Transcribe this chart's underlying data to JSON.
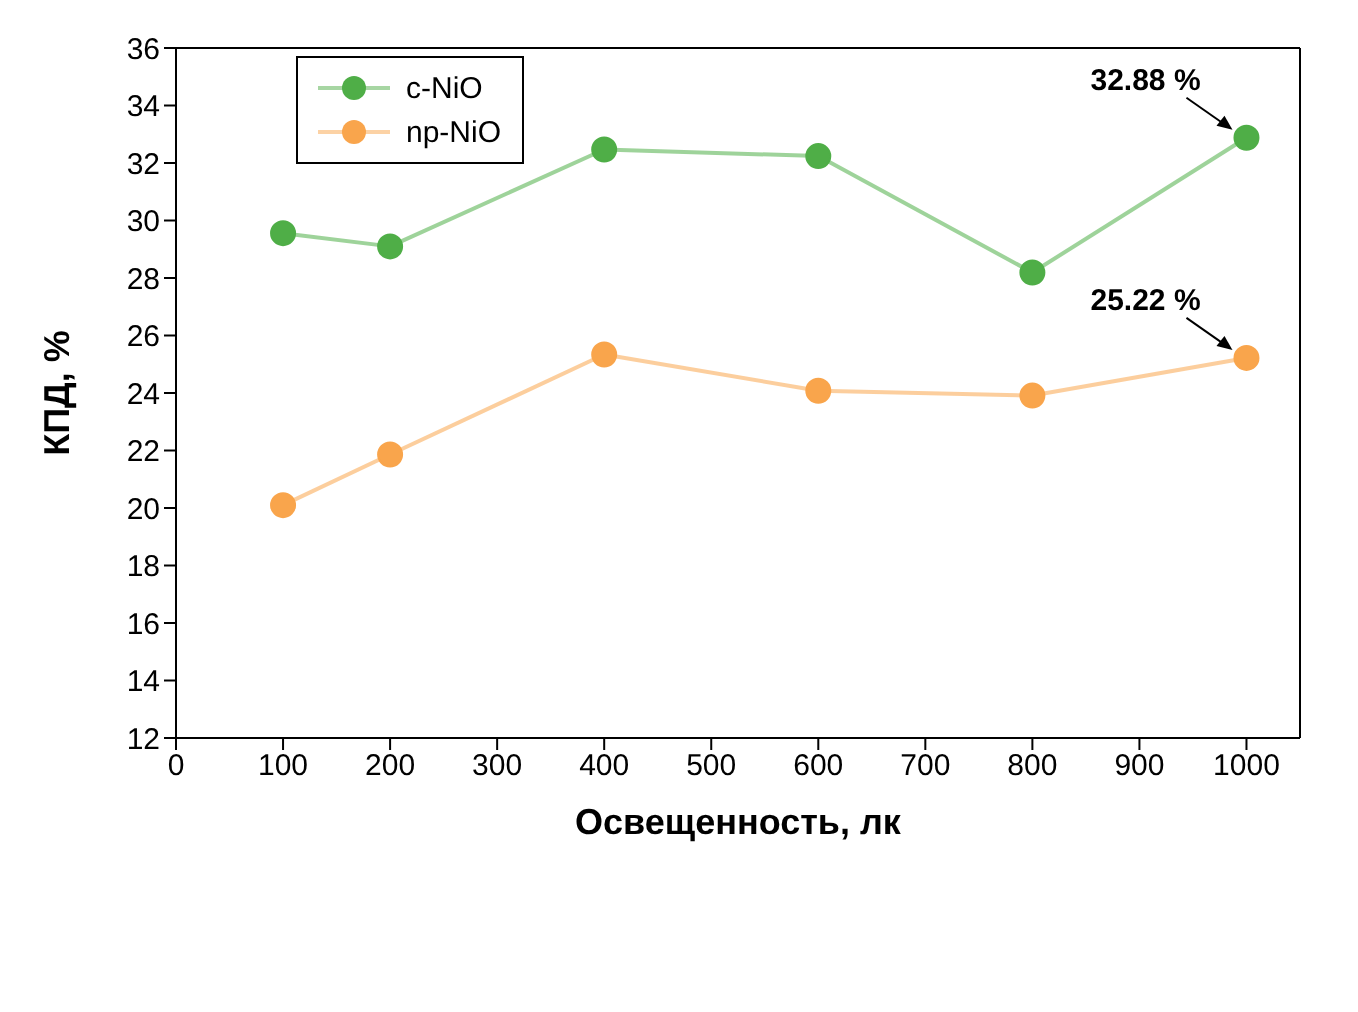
{
  "chart_data": {
    "type": "line",
    "xlabel": "Освещенность, лк",
    "ylabel": "КПД, %",
    "x": [
      100,
      200,
      400,
      600,
      800,
      1000
    ],
    "series": [
      {
        "name": "c-NiO",
        "color": "#4fae47",
        "values": [
          29.56,
          29.1,
          32.47,
          32.24,
          28.19,
          32.88
        ]
      },
      {
        "name": "np-NiO",
        "color": "#f9a54c",
        "values": [
          20.1,
          21.86,
          25.34,
          24.08,
          23.91,
          25.22
        ]
      }
    ],
    "xlim": [
      0,
      1050
    ],
    "xticks": [
      0,
      100,
      200,
      300,
      400,
      500,
      600,
      700,
      800,
      900,
      1000
    ],
    "ylim": [
      12,
      36
    ],
    "yticks": [
      12,
      14,
      16,
      18,
      20,
      22,
      24,
      26,
      28,
      30,
      32,
      34,
      36
    ],
    "annotations": [
      {
        "text": "32.88 %",
        "x": 1000,
        "y": 32.88
      },
      {
        "text": "25.22 %",
        "x": 1000,
        "y": 25.22
      }
    ],
    "legend": "top left",
    "marker": "circle",
    "grid": false
  }
}
